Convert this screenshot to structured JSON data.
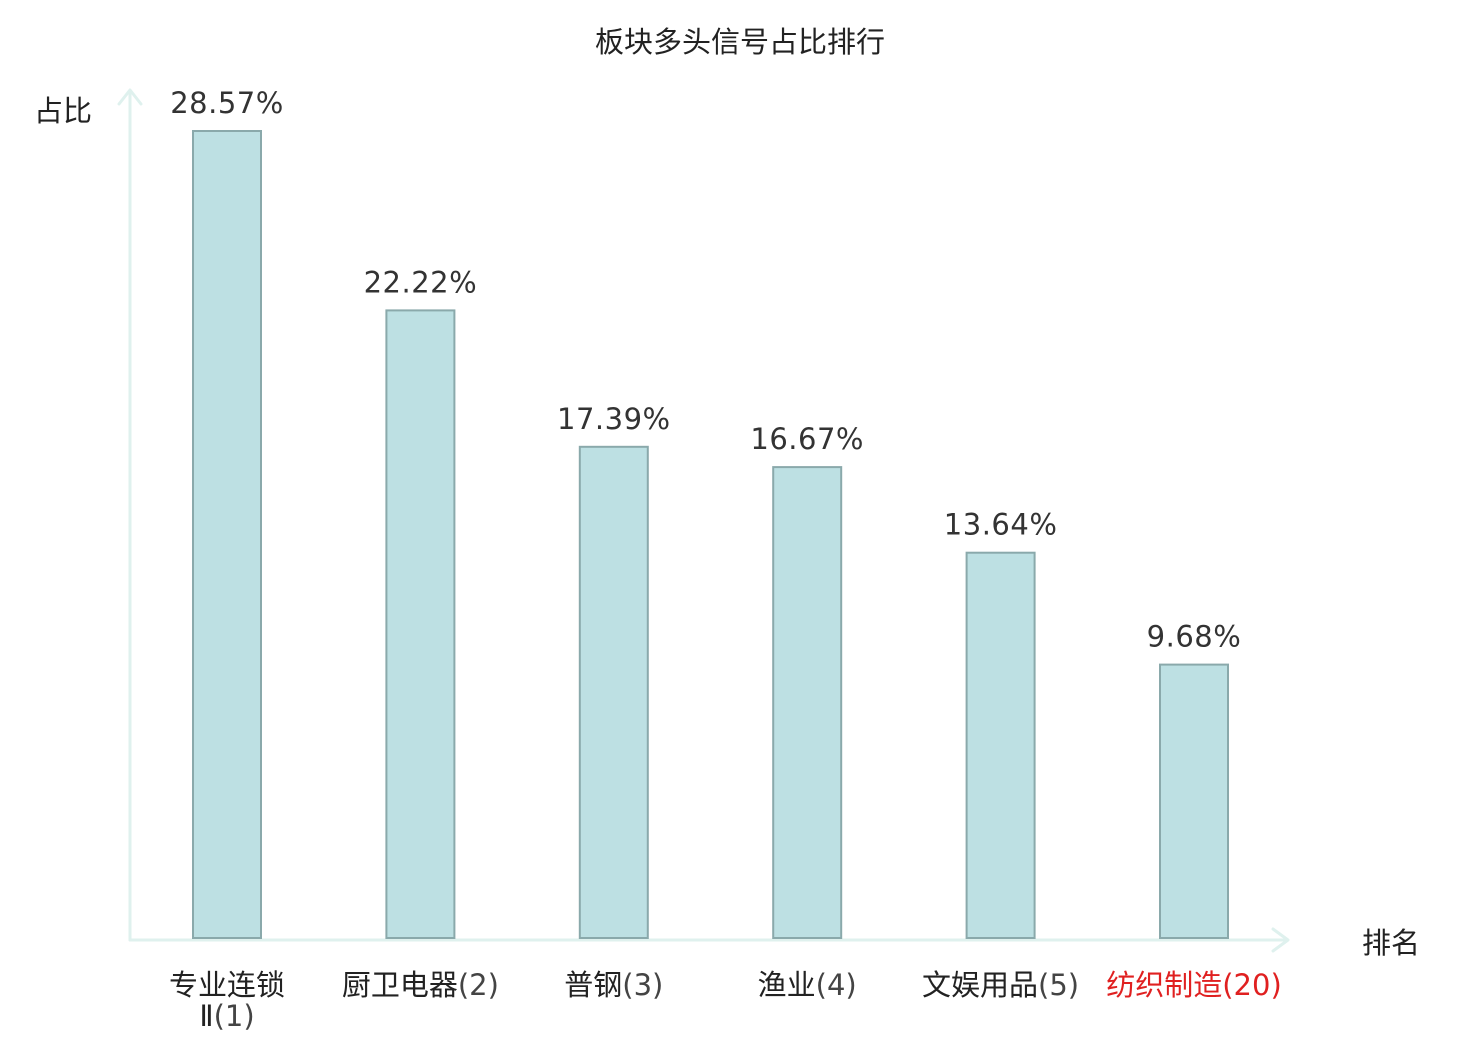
{
  "chart_data": {
    "type": "bar",
    "title": "板块多头信号占比排行",
    "ylabel": "占比",
    "xlabel": "排名",
    "unit": "%",
    "categories": [
      {
        "name": "专业连锁Ⅱ",
        "rank": "(1)",
        "highlight": false
      },
      {
        "name": "厨卫电器",
        "rank": "(2)",
        "highlight": false
      },
      {
        "name": "普钢",
        "rank": "(3)",
        "highlight": false
      },
      {
        "name": "渔业",
        "rank": "(4)",
        "highlight": false
      },
      {
        "name": "文娱用品",
        "rank": "(5)",
        "highlight": false
      },
      {
        "name": "纺织制造",
        "rank": "(20)",
        "highlight": true
      }
    ],
    "values": [
      28.57,
      22.22,
      17.39,
      16.67,
      13.64,
      9.68
    ],
    "value_labels": [
      "28.57%",
      "22.22%",
      "17.39%",
      "16.67%",
      "13.64%",
      "9.68%"
    ],
    "ylim": [
      0,
      30
    ],
    "grid": false,
    "legend": "none"
  },
  "colors": {
    "bar_fill": "#bde0e3",
    "bar_stroke": "#8aa9ab",
    "axis": "#dff1ee",
    "text": "#222222",
    "highlight": "#e02020"
  }
}
